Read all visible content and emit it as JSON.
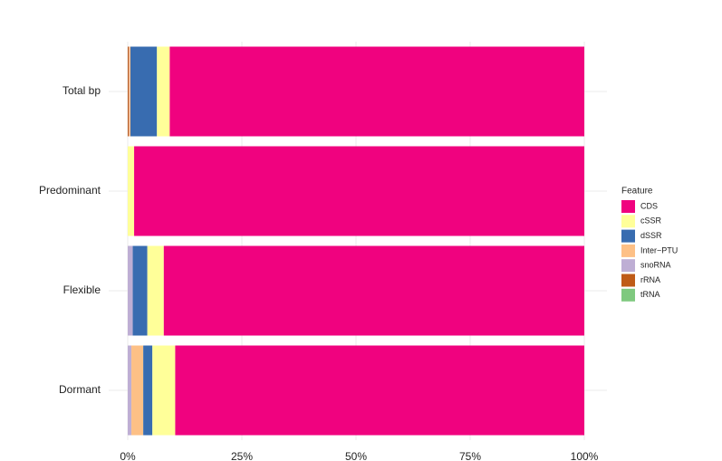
{
  "chart_data": {
    "type": "stacked-barh",
    "categories": [
      "Total bp",
      "Predominant",
      "Flexible",
      "Dormant"
    ],
    "legend_title": "Feature",
    "series": [
      {
        "name": "CDS",
        "color": "#f0027f",
        "values": [
          90.8,
          98.6,
          92.1,
          89.6
        ]
      },
      {
        "name": "cSSR",
        "color": "#ffff99",
        "values": [
          2.8,
          1.4,
          3.6,
          5.0
        ]
      },
      {
        "name": "dSSR",
        "color": "#386cb0",
        "values": [
          5.8,
          0,
          3.2,
          2.0
        ]
      },
      {
        "name": "Inter−PTU",
        "color": "#fdc086",
        "values": [
          0.3,
          0,
          0,
          2.6
        ]
      },
      {
        "name": "snoRNA",
        "color": "#beaed4",
        "values": [
          0.1,
          0,
          1.1,
          0.8
        ]
      },
      {
        "name": "rRNA",
        "color": "#bf5b17",
        "values": [
          0.2,
          0,
          0,
          0
        ]
      },
      {
        "name": "tRNA",
        "color": "#7fc97f",
        "values": [
          0,
          0,
          0,
          0
        ]
      }
    ],
    "xlim": [
      0,
      100
    ],
    "xticks": [
      {
        "value": 0,
        "label": "0%"
      },
      {
        "value": 25,
        "label": "25%"
      },
      {
        "value": 50,
        "label": "50%"
      },
      {
        "value": 75,
        "label": "75%"
      },
      {
        "value": 100,
        "label": "100%"
      }
    ],
    "grid": true,
    "legend": "right"
  }
}
